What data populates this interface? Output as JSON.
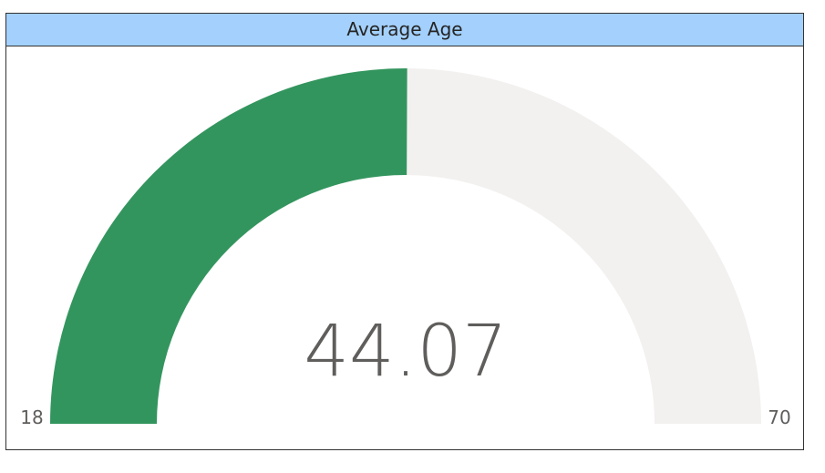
{
  "visual": {
    "title": "Average Age"
  },
  "chart_data": {
    "type": "gauge",
    "title": "Average Age",
    "value": 44.07,
    "value_label": "44.07",
    "min": 18,
    "max": 70,
    "min_label": "18",
    "max_label": "70",
    "fill_color": "#33955e",
    "track_color": "#f2f1f0",
    "text_color": "#605e5c"
  }
}
